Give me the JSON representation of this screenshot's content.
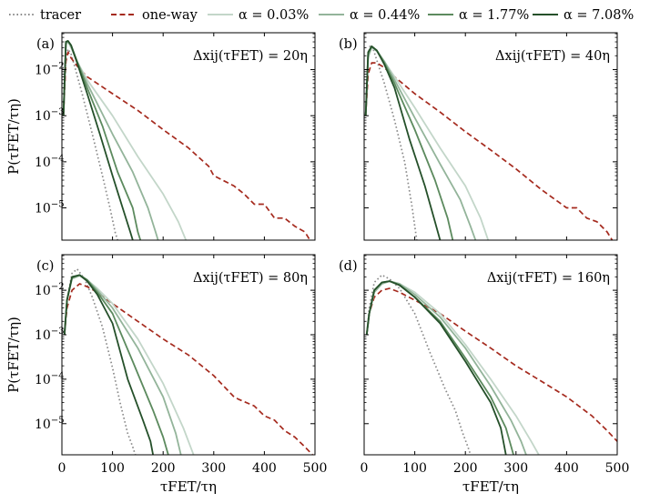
{
  "legend": {
    "entries": [
      {
        "label": "tracer",
        "color": "#8a8a8a",
        "dash": "dot"
      },
      {
        "label": "one-way",
        "color": "#a52a1e",
        "dash": "dash"
      },
      {
        "label": "α = 0.03%",
        "color": "#c3d6c9",
        "dash": "solid"
      },
      {
        "label": "α = 0.44%",
        "color": "#93b49a",
        "dash": "solid"
      },
      {
        "label": "α = 1.77%",
        "color": "#5c8a5e",
        "dash": "solid"
      },
      {
        "label": "α = 7.08%",
        "color": "#25502a",
        "dash": "solid"
      }
    ]
  },
  "axes_text": {
    "ylabel": "P(τFET/τη)",
    "xlabel": "τFET/τη"
  },
  "chart_data": [
    {
      "type": "line",
      "panel": "(a)",
      "annotation": "Δxij(τFET) = 20η",
      "xlim": [
        0,
        500
      ],
      "ylim_log10": [
        -5.7,
        -1.2
      ],
      "yscale": "log",
      "xticks": [
        0,
        100,
        200,
        300,
        400,
        500
      ],
      "yticks": [
        "10-2",
        "10-3",
        "10-4",
        "10-5"
      ],
      "series": [
        {
          "name": "tracer",
          "x": [
            3,
            8,
            12,
            18,
            25,
            40,
            60,
            80,
            95,
            105,
            110
          ],
          "y": [
            0.001,
            0.018,
            0.028,
            0.022,
            0.012,
            0.003,
            0.0004,
            5e-05,
            1e-05,
            3e-06,
            2e-06
          ]
        },
        {
          "name": "one-way",
          "x": [
            3,
            8,
            12,
            18,
            30,
            50,
            70,
            100,
            150,
            200,
            250,
            290,
            300,
            340,
            360,
            380,
            400,
            420,
            440,
            460,
            480,
            490
          ],
          "y": [
            0.001,
            0.015,
            0.024,
            0.018,
            0.012,
            0.007,
            0.005,
            0.003,
            0.0013,
            0.0005,
            0.0002,
            8e-05,
            5e-05,
            3e-05,
            2e-05,
            1.2e-05,
            1.2e-05,
            6e-06,
            6e-06,
            4e-06,
            3e-06,
            2e-06
          ]
        },
        {
          "name": "α = 0.03%",
          "x": [
            3,
            8,
            12,
            18,
            30,
            50,
            100,
            150,
            200,
            230,
            245
          ],
          "y": [
            0.001,
            0.035,
            0.04,
            0.03,
            0.015,
            0.006,
            0.001,
            0.00013,
            2e-05,
            5e-06,
            2e-06
          ]
        },
        {
          "name": "α = 0.44%",
          "x": [
            3,
            8,
            12,
            18,
            30,
            50,
            100,
            140,
            170,
            185,
            190
          ],
          "y": [
            0.001,
            0.038,
            0.04,
            0.032,
            0.015,
            0.005,
            0.0004,
            6e-05,
            1e-05,
            3e-06,
            2e-06
          ]
        },
        {
          "name": "α = 1.77%",
          "x": [
            3,
            8,
            12,
            18,
            30,
            50,
            80,
            110,
            140,
            150,
            155
          ],
          "y": [
            0.001,
            0.04,
            0.042,
            0.034,
            0.015,
            0.004,
            0.0006,
            6e-05,
            1e-05,
            3e-06,
            2e-06
          ]
        },
        {
          "name": "α = 7.08%",
          "x": [
            3,
            8,
            12,
            18,
            30,
            50,
            75,
            100,
            120,
            135,
            140
          ],
          "y": [
            0.001,
            0.04,
            0.042,
            0.034,
            0.014,
            0.003,
            0.0004,
            5e-05,
            1e-05,
            3e-06,
            2e-06
          ]
        }
      ]
    },
    {
      "type": "line",
      "panel": "(b)",
      "annotation": "Δxij(τFET) = 40η",
      "xlim": [
        0,
        500
      ],
      "ylim_log10": [
        -5.7,
        -1.2
      ],
      "yscale": "log",
      "xticks": [
        0,
        100,
        200,
        300,
        400,
        500
      ],
      "yticks": [
        "10-2",
        "10-3",
        "10-4",
        "10-5"
      ],
      "series": [
        {
          "name": "tracer",
          "x": [
            3,
            8,
            12,
            18,
            25,
            40,
            60,
            80,
            95,
            100,
            104
          ],
          "y": [
            0.001,
            0.02,
            0.034,
            0.028,
            0.016,
            0.005,
            0.0008,
            0.0001,
            1e-05,
            4e-06,
            2e-06
          ]
        },
        {
          "name": "one-way",
          "x": [
            3,
            8,
            15,
            25,
            40,
            60,
            100,
            150,
            200,
            250,
            300,
            350,
            400,
            420,
            440,
            460,
            480,
            490
          ],
          "y": [
            0.001,
            0.008,
            0.014,
            0.014,
            0.011,
            0.007,
            0.003,
            0.0012,
            0.00045,
            0.00018,
            7e-05,
            2.5e-05,
            1e-05,
            1e-05,
            6e-06,
            5e-06,
            3e-06,
            2e-06
          ]
        },
        {
          "name": "α = 0.03%",
          "x": [
            3,
            8,
            15,
            25,
            40,
            60,
            100,
            150,
            200,
            230,
            245
          ],
          "y": [
            0.001,
            0.018,
            0.03,
            0.025,
            0.015,
            0.007,
            0.0015,
            0.0002,
            3e-05,
            6e-06,
            2e-06
          ]
        },
        {
          "name": "α = 0.44%",
          "x": [
            3,
            8,
            15,
            25,
            40,
            60,
            100,
            150,
            190,
            210,
            220
          ],
          "y": [
            0.001,
            0.02,
            0.031,
            0.026,
            0.015,
            0.006,
            0.0009,
            9e-05,
            1.5e-05,
            4e-06,
            2e-06
          ]
        },
        {
          "name": "α = 1.77%",
          "x": [
            3,
            8,
            15,
            25,
            40,
            60,
            100,
            140,
            165,
            175
          ],
          "y": [
            0.001,
            0.022,
            0.032,
            0.026,
            0.014,
            0.005,
            0.0005,
            4e-05,
            6e-06,
            2e-06
          ]
        },
        {
          "name": "α = 7.08%",
          "x": [
            3,
            8,
            15,
            25,
            40,
            60,
            90,
            120,
            140,
            150
          ],
          "y": [
            0.001,
            0.024,
            0.032,
            0.026,
            0.013,
            0.004,
            0.0003,
            3e-05,
            5e-06,
            2e-06
          ]
        }
      ]
    },
    {
      "type": "line",
      "panel": "(c)",
      "annotation": "Δxij(τFET) = 80η",
      "xlim": [
        0,
        500
      ],
      "ylim_log10": [
        -5.7,
        -1.2
      ],
      "yscale": "log",
      "xticks": [
        0,
        100,
        200,
        300,
        400,
        500
      ],
      "yticks": [
        "10-2",
        "10-3",
        "10-4",
        "10-5"
      ],
      "series": [
        {
          "name": "tracer",
          "x": [
            5,
            10,
            20,
            30,
            45,
            60,
            80,
            100,
            115,
            130,
            140,
            145
          ],
          "y": [
            0.001,
            0.006,
            0.024,
            0.03,
            0.018,
            0.007,
            0.0015,
            0.00018,
            3e-05,
            6e-06,
            3e-06,
            2e-06
          ]
        },
        {
          "name": "one-way",
          "x": [
            5,
            10,
            20,
            35,
            50,
            70,
            100,
            150,
            200,
            250,
            300,
            340,
            350,
            380,
            400,
            420,
            440,
            460,
            480,
            495
          ],
          "y": [
            0.001,
            0.004,
            0.01,
            0.014,
            0.012,
            0.009,
            0.005,
            0.002,
            0.0008,
            0.00035,
            0.00012,
            4e-05,
            3.5e-05,
            2.5e-05,
            1.5e-05,
            1.2e-05,
            7e-06,
            5e-06,
            3e-06,
            2e-06
          ]
        },
        {
          "name": "α = 0.03%",
          "x": [
            5,
            10,
            20,
            35,
            50,
            70,
            100,
            150,
            200,
            240,
            260
          ],
          "y": [
            0.001,
            0.006,
            0.018,
            0.021,
            0.017,
            0.011,
            0.005,
            0.0008,
            8e-05,
            8e-06,
            2e-06
          ]
        },
        {
          "name": "α = 0.44%",
          "x": [
            5,
            10,
            20,
            35,
            50,
            70,
            100,
            150,
            200,
            225,
            235
          ],
          "y": [
            0.001,
            0.006,
            0.019,
            0.022,
            0.017,
            0.01,
            0.004,
            0.0005,
            4e-05,
            6e-06,
            2e-06
          ]
        },
        {
          "name": "α = 1.77%",
          "x": [
            5,
            10,
            20,
            35,
            50,
            70,
            100,
            140,
            180,
            200,
            210
          ],
          "y": [
            0.001,
            0.006,
            0.019,
            0.022,
            0.017,
            0.009,
            0.003,
            0.00025,
            2e-05,
            5e-06,
            2e-06
          ]
        },
        {
          "name": "α = 7.08%",
          "x": [
            5,
            10,
            20,
            35,
            50,
            70,
            100,
            130,
            160,
            175,
            180
          ],
          "y": [
            0.001,
            0.006,
            0.02,
            0.022,
            0.016,
            0.008,
            0.0018,
            0.0001,
            1.2e-05,
            4e-06,
            2e-06
          ]
        }
      ]
    },
    {
      "type": "line",
      "panel": "(d)",
      "annotation": "Δxij(τFET) = 160η",
      "xlim": [
        0,
        500
      ],
      "ylim_log10": [
        -5.7,
        -1.2
      ],
      "yscale": "log",
      "xticks": [
        0,
        100,
        200,
        300,
        400,
        500
      ],
      "yticks": [
        "10-2",
        "10-3",
        "10-4",
        "10-5"
      ],
      "series": [
        {
          "name": "tracer",
          "x": [
            5,
            10,
            20,
            35,
            50,
            70,
            100,
            130,
            160,
            180,
            195,
            205,
            210
          ],
          "y": [
            0.001,
            0.004,
            0.015,
            0.022,
            0.018,
            0.011,
            0.003,
            0.0004,
            6e-05,
            2e-05,
            6e-06,
            3e-06,
            2e-06
          ]
        },
        {
          "name": "one-way",
          "x": [
            5,
            10,
            20,
            35,
            50,
            70,
            100,
            150,
            200,
            250,
            300,
            350,
            400,
            450,
            480,
            500
          ],
          "y": [
            0.001,
            0.003,
            0.007,
            0.01,
            0.011,
            0.009,
            0.006,
            0.003,
            0.0012,
            0.0005,
            0.0002,
            9e-05,
            4e-05,
            1.5e-05,
            7e-06,
            4e-06
          ]
        },
        {
          "name": "α = 0.03%",
          "x": [
            5,
            10,
            20,
            35,
            50,
            70,
            100,
            150,
            200,
            250,
            300,
            330,
            345
          ],
          "y": [
            0.001,
            0.003,
            0.009,
            0.014,
            0.016,
            0.014,
            0.009,
            0.003,
            0.0006,
            0.0001,
            1.5e-05,
            4e-06,
            2e-06
          ]
        },
        {
          "name": "α = 0.44%",
          "x": [
            5,
            10,
            20,
            35,
            50,
            70,
            100,
            150,
            200,
            250,
            290,
            310,
            320
          ],
          "y": [
            0.001,
            0.003,
            0.009,
            0.014,
            0.016,
            0.014,
            0.008,
            0.0025,
            0.0005,
            7e-05,
            1.2e-05,
            4e-06,
            2e-06
          ]
        },
        {
          "name": "α = 1.77%",
          "x": [
            5,
            10,
            20,
            35,
            50,
            70,
            100,
            150,
            200,
            250,
            280,
            295
          ],
          "y": [
            0.001,
            0.003,
            0.01,
            0.015,
            0.016,
            0.013,
            0.007,
            0.002,
            0.0003,
            4e-05,
            8e-06,
            2e-06
          ]
        },
        {
          "name": "α = 7.08%",
          "x": [
            5,
            10,
            20,
            35,
            50,
            70,
            100,
            150,
            200,
            250,
            270,
            280
          ],
          "y": [
            0.001,
            0.003,
            0.01,
            0.015,
            0.016,
            0.013,
            0.007,
            0.0018,
            0.00025,
            3e-05,
            8e-06,
            2e-06
          ]
        }
      ]
    }
  ]
}
